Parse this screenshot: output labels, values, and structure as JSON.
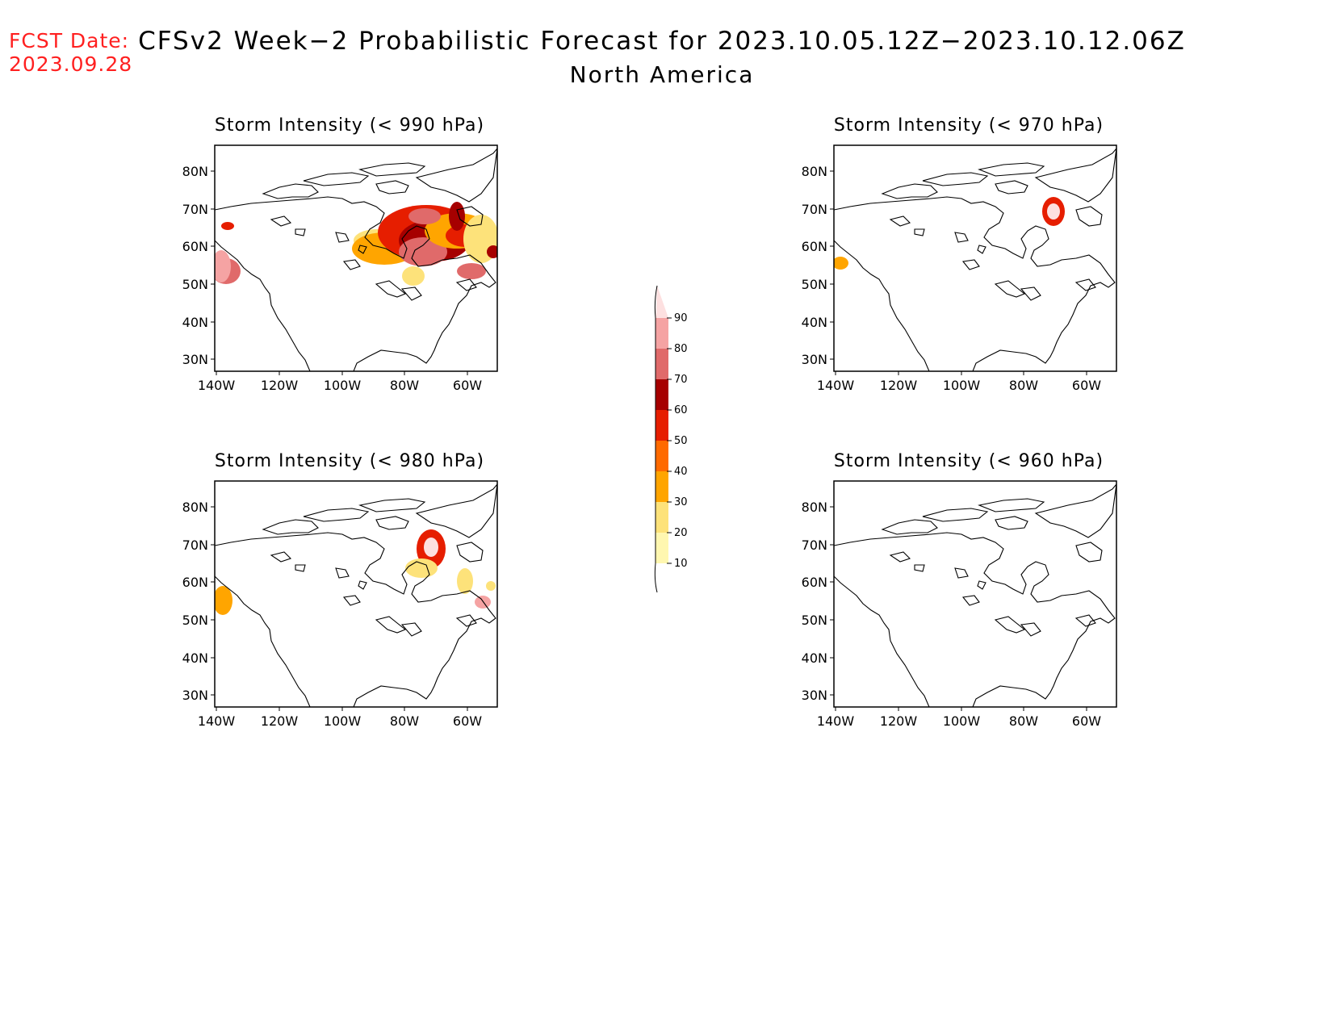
{
  "header": {
    "fcst_label": "FCST Date:",
    "fcst_date": "2023.09.28",
    "title": "CFSv2 Week−2 Probabilistic Forecast for 2023.10.05.12Z−2023.10.12.06Z",
    "subtitle": "North America"
  },
  "axes": {
    "lat_labels": [
      "80N",
      "70N",
      "60N",
      "50N",
      "40N",
      "30N"
    ],
    "lon_labels": [
      "140W",
      "120W",
      "100W",
      "80W",
      "60W"
    ]
  },
  "panels": [
    {
      "id": "990",
      "title": "Storm Intensity (< 990 hPa)"
    },
    {
      "id": "970",
      "title": "Storm Intensity (< 970 hPa)"
    },
    {
      "id": "980",
      "title": "Storm Intensity (< 980 hPa)"
    },
    {
      "id": "960",
      "title": "Storm Intensity (< 960 hPa)"
    }
  ],
  "legend": {
    "labels": [
      "10",
      "20",
      "30",
      "40",
      "50",
      "60",
      "70",
      "80",
      "90"
    ],
    "colors": [
      "#fff7b0",
      "#fde27a",
      "#ffa500",
      "#ff6a00",
      "#e61e00",
      "#a60000",
      "#e06a6a",
      "#f5a3a3",
      "#fde0e0"
    ]
  },
  "colors": {
    "fcst_text": "#ff2020",
    "coast": "#000000"
  }
}
